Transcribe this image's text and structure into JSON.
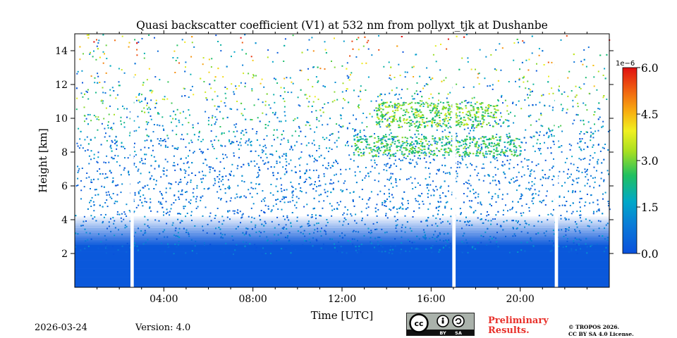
{
  "chart_data": {
    "type": "heatmap",
    "title": "Quasi backscatter coefficient (V1) at 532 nm from pollyxt_tjk at Dushanbe",
    "xlabel": "Time [UTC]",
    "ylabel": "Height [km]",
    "x_ticks": [
      "04:00",
      "08:00",
      "12:00",
      "16:00",
      "20:00"
    ],
    "x_tick_hours": [
      4,
      8,
      12,
      16,
      20
    ],
    "xlim_hours": [
      0,
      24
    ],
    "y_ticks": [
      "2",
      "4",
      "6",
      "8",
      "10",
      "12",
      "14"
    ],
    "y_tick_values": [
      2,
      4,
      6,
      8,
      10,
      12,
      14
    ],
    "ylim_km": [
      0,
      15
    ],
    "colorbar": {
      "exponent_label": "1e−6",
      "ticks": [
        "0.0",
        "1.5",
        "3.0",
        "4.5",
        "6.0"
      ],
      "tick_values": [
        0,
        1.5,
        3.0,
        4.5,
        6.0
      ],
      "range": [
        0,
        6.0
      ],
      "colormap": "jet"
    },
    "data_gaps_hours": [
      [
        2.5,
        2.65
      ],
      [
        16.95,
        17.1
      ],
      [
        21.55,
        21.7
      ]
    ],
    "features": [
      {
        "label": "dense low layer",
        "height_km": [
          0,
          4
        ],
        "value_level": 0.2
      },
      {
        "label": "cirrus layer",
        "time_hours": [
          13.5,
          19
        ],
        "height_km": [
          9.5,
          11
        ],
        "value_level": 3.5
      },
      {
        "label": "cirrus fall streaks",
        "time_hours": [
          12.5,
          20
        ],
        "height_km": [
          7.8,
          9
        ],
        "value_level": 3.0
      }
    ]
  },
  "footer": {
    "date": "2026-03-24",
    "version": "Version: 4.0",
    "license_badge": {
      "cc": "cc",
      "by": "BY",
      "sa": "SA"
    },
    "preliminary_line1": "Preliminary",
    "preliminary_line2": "Results.",
    "copyright_line1": "© TROPOS 2026.",
    "copyright_line2": "CC BY SA 4.0 License."
  }
}
